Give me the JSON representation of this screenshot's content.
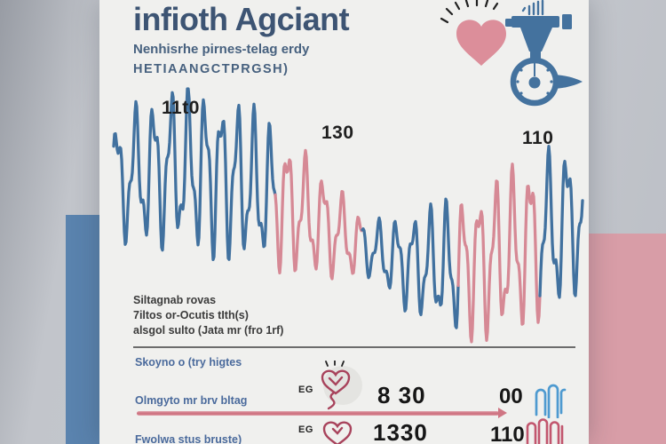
{
  "poster": {
    "title": "infioth Agciant",
    "subtitle_line1": "Nenhisrhe pirnes-telag erdy",
    "subtitle_line2": "HETIAANGCTPRGSH)",
    "notes": {
      "line1": "Siltagnab rovas",
      "line2": "7iltos or-Ocutis tIth(s)",
      "line3": "alsgol sulto (Jata mr (fro 1rf)"
    },
    "bottom": {
      "heading": "Skoyno o (try higtes",
      "rows": [
        {
          "label": "Olmgyto mr brv bltag",
          "tag": "EG",
          "reading": "8 30",
          "secondary": "00"
        },
        {
          "label": "Fwolwa stus bruste)",
          "tag": "EG",
          "reading": "1330",
          "secondary": "110"
        }
      ]
    },
    "colors": {
      "accent_blue": "#5a83ae",
      "accent_pink": "#d89da7",
      "wave_blue": "#41719f",
      "wave_pink": "#d68995",
      "card": "#f0f0ee",
      "title_ink": "#3d5473",
      "label_blue": "#4a6a9c"
    }
  },
  "chart_data": {
    "type": "line",
    "title": "",
    "xlabel": "",
    "ylabel": "",
    "description": "Decorative high-frequency blood-pressure style waveform with rising and falling amplitude envelope; no axes, ticks or gridlines; drawn in alternating blue and pink segments with numeric callouts",
    "legend": "none",
    "annotations": [
      {
        "label": "11t0",
        "x": 200,
        "y": 122
      },
      {
        "label": "130",
        "x": 368,
        "y": 150
      },
      {
        "label": "110",
        "x": 590,
        "y": 155
      }
    ],
    "segments": [
      {
        "color": "#41719f",
        "x_start": 128,
        "x_end": 310
      },
      {
        "color": "#d68995",
        "x_start": 310,
        "x_end": 408
      },
      {
        "color": "#41719f",
        "x_start": 408,
        "x_end": 516
      },
      {
        "color": "#d68995",
        "x_start": 516,
        "x_end": 608
      },
      {
        "color": "#41719f",
        "x_start": 608,
        "x_end": 656
      }
    ],
    "x_range": [
      128,
      656
    ],
    "y_range": [
      100,
      386
    ],
    "wave_params": {
      "carrier_period": 19.5,
      "secondary_period": 8.3,
      "envelope_base": 34,
      "envelope_amp": 66,
      "baseline_mid": 245,
      "baseline_amp": 55
    }
  }
}
